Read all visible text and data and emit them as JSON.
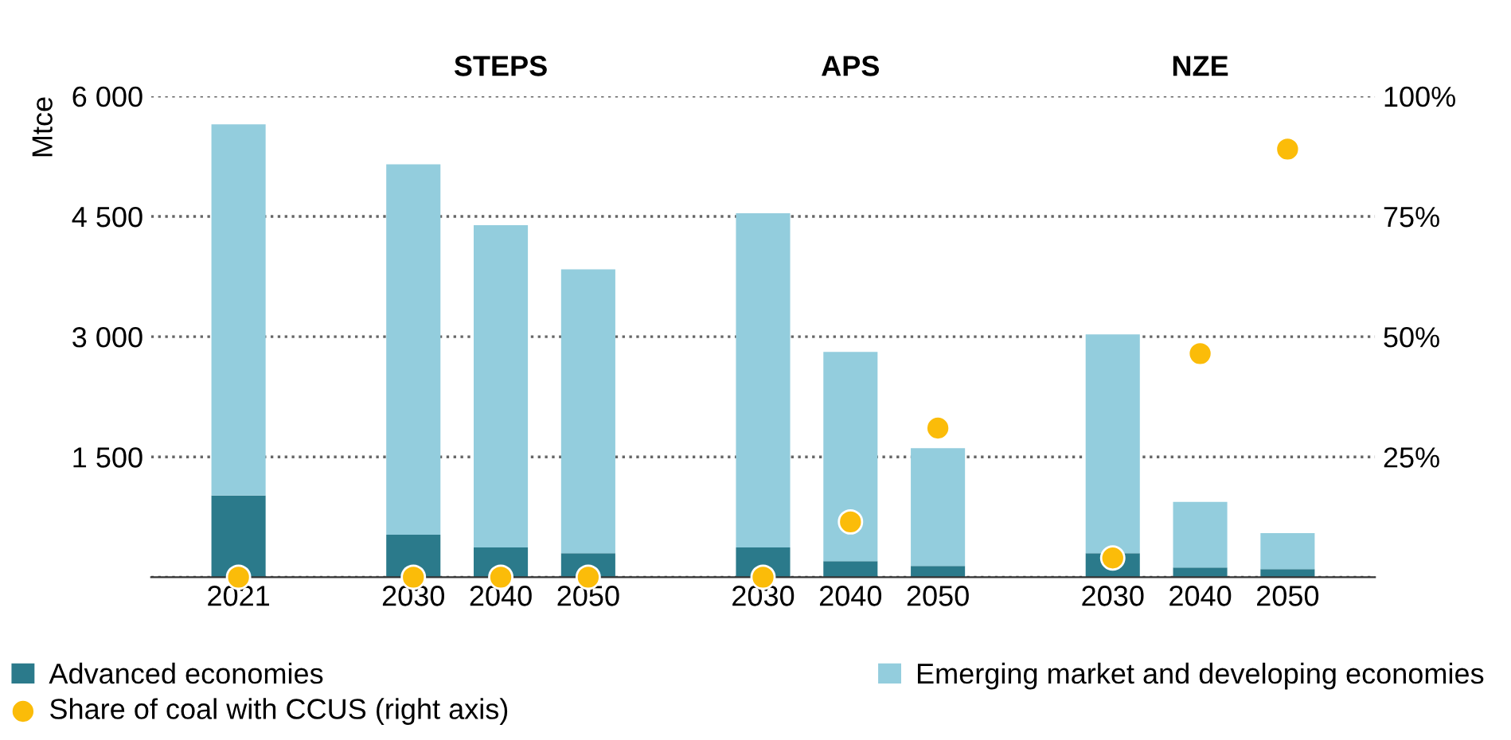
{
  "chart_data": {
    "type": "bar",
    "stacked": true,
    "ylabel": "Mtce",
    "categories": [
      "2021",
      null,
      "2030",
      "2040",
      "2050",
      null,
      "2030",
      "2040",
      "2050",
      null,
      "2030",
      "2040",
      "2050"
    ],
    "series": [
      {
        "name": "Advanced economies",
        "color": "#2b7a8b",
        "values": [
          1020,
          null,
          530,
          370,
          300,
          null,
          370,
          200,
          140,
          null,
          300,
          120,
          100
        ]
      },
      {
        "name": "Emerging market and developing economies",
        "color": "#93cddd",
        "values": [
          4630,
          null,
          4620,
          4020,
          3540,
          null,
          4170,
          2610,
          1470,
          null,
          2730,
          820,
          450
        ]
      },
      {
        "name": "Share of coal with CCUS (right axis)",
        "type": "scatter",
        "axis": "y2",
        "color": "#fbbc09",
        "values": [
          0,
          null,
          0,
          0,
          0,
          null,
          0,
          11.5,
          31,
          null,
          4,
          46.5,
          89
        ]
      }
    ],
    "ylim": [
      0,
      6000
    ],
    "yticks": [
      {
        "value": 0,
        "label": null
      },
      {
        "value": 1500,
        "label": "1 500"
      },
      {
        "value": 3000,
        "label": "3 000"
      },
      {
        "value": 4500,
        "label": "4 500"
      },
      {
        "value": 6000,
        "label": "6 000"
      }
    ],
    "y2lim": [
      0,
      100
    ],
    "y2ticks": [
      {
        "value": 0,
        "label": null
      },
      {
        "value": 25,
        "label": "25%"
      },
      {
        "value": 50,
        "label": "50%"
      },
      {
        "value": 75,
        "label": "75%"
      },
      {
        "value": 100,
        "label": "100%"
      }
    ],
    "grid": "y",
    "legend": "bottom",
    "marker": "circle",
    "annotations": [
      "STEPS",
      "APS",
      "NZE"
    ]
  }
}
